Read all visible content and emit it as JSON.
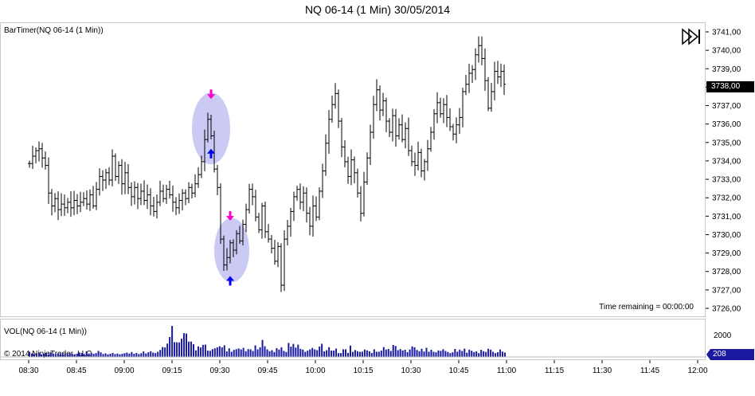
{
  "title": "NQ 06-14 (1 Min)  30/05/2014",
  "price_panel": {
    "label": "BarTimer(NQ 06-14 (1 Min))",
    "time_remaining": "Time remaining = 00:00:00",
    "last_price": "3738,00"
  },
  "volume_panel": {
    "label": "VOL(NQ 06-14 (1 Min))",
    "copyright": "© 2014 NinjaTrader, LLC",
    "last_volume": "208",
    "axis_tick": "2000"
  },
  "colors": {
    "bars": "#000000",
    "volume": "#1a1aa0",
    "ellipse": "#b8b8f0",
    "arrow_magenta": "#ff00cc",
    "arrow_blue": "#0000ee",
    "last_price_box": "#000000",
    "last_volume_box": "#1a1aa0"
  },
  "icons": {
    "playback": "skip-to-end-icon"
  },
  "chart_data": {
    "type": "ohlc",
    "title": "NQ 06-14 (1 Min)  30/05/2014",
    "y_ticks": [
      "3741,00",
      "3740,00",
      "3739,00",
      "3738,00",
      "3737,00",
      "3736,00",
      "3735,00",
      "3734,00",
      "3733,00",
      "3732,00",
      "3731,00",
      "3730,00",
      "3729,00",
      "3728,00",
      "3727,00",
      "3726,00"
    ],
    "y_range": [
      3725.6,
      3741.5
    ],
    "x_ticks": [
      "08:30",
      "08:45",
      "09:00",
      "09:15",
      "09:30",
      "09:45",
      "10:00",
      "10:15",
      "10:30",
      "10:45",
      "11:00",
      "11:15",
      "11:30",
      "11:45",
      "12:00"
    ],
    "x_range_minutes": [
      510,
      720
    ],
    "close_path": [
      [
        510,
        3733.9
      ],
      [
        511,
        3734.3
      ],
      [
        512,
        3734.6
      ],
      [
        513,
        3734.7
      ],
      [
        514,
        3734.2
      ],
      [
        515,
        3733.8
      ],
      [
        516,
        3732.3
      ],
      [
        517,
        3731.6
      ],
      [
        518,
        3732.0
      ],
      [
        519,
        3731.4
      ],
      [
        520,
        3731.7
      ],
      [
        521,
        3731.5
      ],
      [
        522,
        3731.8
      ],
      [
        523,
        3731.5
      ],
      [
        524,
        3731.9
      ],
      [
        525,
        3731.6
      ],
      [
        526,
        3731.8
      ],
      [
        527,
        3732.0
      ],
      [
        528,
        3731.7
      ],
      [
        529,
        3732.2
      ],
      [
        530,
        3731.6
      ],
      [
        531,
        3732.5
      ],
      [
        532,
        3733.2
      ],
      [
        533,
        3733.0
      ],
      [
        534,
        3733.4
      ],
      [
        535,
        3733.0
      ],
      [
        536,
        3734.3
      ],
      [
        537,
        3733.2
      ],
      [
        538,
        3733.8
      ],
      [
        539,
        3732.8
      ],
      [
        540,
        3733.4
      ],
      [
        541,
        3732.6
      ],
      [
        542,
        3732.1
      ],
      [
        543,
        3732.6
      ],
      [
        544,
        3732.0
      ],
      [
        545,
        3732.4
      ],
      [
        546,
        3731.9
      ],
      [
        547,
        3732.2
      ],
      [
        548,
        3731.6
      ],
      [
        549,
        3731.3
      ],
      [
        550,
        3731.8
      ],
      [
        551,
        3732.4
      ],
      [
        552,
        3732.0
      ],
      [
        553,
        3732.5
      ],
      [
        554,
        3732.2
      ],
      [
        555,
        3731.8
      ],
      [
        556,
        3731.5
      ],
      [
        557,
        3731.9
      ],
      [
        558,
        3732.3
      ],
      [
        559,
        3732.0
      ],
      [
        560,
        3732.6
      ],
      [
        561,
        3732.3
      ],
      [
        562,
        3732.8
      ],
      [
        563,
        3733.3
      ],
      [
        564,
        3734.0
      ],
      [
        565,
        3735.2
      ],
      [
        566,
        3736.3
      ],
      [
        567,
        3735.4
      ],
      [
        568,
        3733.6
      ],
      [
        569,
        3732.6
      ],
      [
        570,
        3729.8
      ],
      [
        571,
        3728.4
      ],
      [
        572,
        3728.8
      ],
      [
        573,
        3729.6
      ],
      [
        574,
        3729.2
      ],
      [
        575,
        3730.1
      ],
      [
        576,
        3729.7
      ],
      [
        577,
        3730.6
      ],
      [
        578,
        3731.4
      ],
      [
        579,
        3732.5
      ],
      [
        580,
        3732.1
      ],
      [
        581,
        3731.0
      ],
      [
        582,
        3730.3
      ],
      [
        583,
        3731.6
      ],
      [
        584,
        3730.2
      ],
      [
        585,
        3729.8
      ],
      [
        586,
        3729.3
      ],
      [
        587,
        3728.6
      ],
      [
        588,
        3729.4
      ],
      [
        589,
        3727.3
      ],
      [
        590,
        3729.8
      ],
      [
        591,
        3730.5
      ],
      [
        592,
        3731.3
      ],
      [
        593,
        3732.1
      ],
      [
        594,
        3732.5
      ],
      [
        595,
        3731.8
      ],
      [
        596,
        3732.3
      ],
      [
        597,
        3731.2
      ],
      [
        598,
        3730.5
      ],
      [
        599,
        3731.6
      ],
      [
        600,
        3731.0
      ],
      [
        601,
        3732.4
      ],
      [
        602,
        3733.5
      ],
      [
        603,
        3735.0
      ],
      [
        604,
        3736.3
      ],
      [
        605,
        3737.1
      ],
      [
        606,
        3737.7
      ],
      [
        607,
        3736.2
      ],
      [
        608,
        3734.8
      ],
      [
        609,
        3734.0
      ],
      [
        610,
        3733.2
      ],
      [
        611,
        3734.1
      ],
      [
        612,
        3733.4
      ],
      [
        613,
        3732.3
      ],
      [
        614,
        3731.2
      ],
      [
        615,
        3732.9
      ],
      [
        616,
        3734.2
      ],
      [
        617,
        3735.6
      ],
      [
        618,
        3737.1
      ],
      [
        619,
        3737.9
      ],
      [
        620,
        3736.8
      ],
      [
        621,
        3737.3
      ],
      [
        622,
        3736.2
      ],
      [
        623,
        3735.6
      ],
      [
        624,
        3736.5
      ],
      [
        625,
        3735.4
      ],
      [
        626,
        3736.0
      ],
      [
        627,
        3735.2
      ],
      [
        628,
        3735.8
      ],
      [
        629,
        3734.6
      ],
      [
        630,
        3734.0
      ],
      [
        631,
        3733.8
      ],
      [
        632,
        3734.5
      ],
      [
        633,
        3733.5
      ],
      [
        634,
        3734.0
      ],
      [
        635,
        3734.7
      ],
      [
        636,
        3735.6
      ],
      [
        637,
        3736.6
      ],
      [
        638,
        3737.2
      ],
      [
        639,
        3736.6
      ],
      [
        640,
        3737.1
      ],
      [
        641,
        3736.4
      ],
      [
        642,
        3735.9
      ],
      [
        643,
        3735.5
      ],
      [
        644,
        3736.0
      ],
      [
        645,
        3736.4
      ],
      [
        646,
        3737.8
      ],
      [
        647,
        3738.2
      ],
      [
        648,
        3738.8
      ],
      [
        649,
        3739.0
      ],
      [
        650,
        3739.8
      ],
      [
        651,
        3740.3
      ],
      [
        652,
        3739.6
      ],
      [
        653,
        3738.4
      ],
      [
        654,
        3736.9
      ],
      [
        655,
        3737.8
      ],
      [
        656,
        3738.9
      ],
      [
        657,
        3738.6
      ],
      [
        658,
        3738.9
      ],
      [
        659,
        3738.2
      ]
    ],
    "signals": [
      {
        "time": 567,
        "price": 3737.4,
        "marker": "down-arrow",
        "color": "magenta"
      },
      {
        "time": 567,
        "price": 3734.7,
        "marker": "up-arrow",
        "color": "blue"
      },
      {
        "time": 573,
        "price": 3730.8,
        "marker": "down-arrow",
        "color": "magenta"
      },
      {
        "time": 573,
        "price": 3727.8,
        "marker": "up-arrow",
        "color": "blue"
      }
    ],
    "highlights": [
      {
        "time_from": 562,
        "time_to": 572,
        "price_from": 3734.2,
        "price_to": 3737.4
      },
      {
        "time_from": 569,
        "time_to": 578,
        "price_from": 3727.8,
        "price_to": 3730.6
      }
    ],
    "volume": [
      48,
      33,
      26,
      34,
      40,
      24,
      30,
      38,
      22,
      45,
      30,
      28,
      35,
      25,
      40,
      33,
      27,
      36,
      29,
      26,
      31,
      43,
      37,
      28,
      52,
      33,
      41,
      30,
      36,
      57,
      44,
      28,
      34,
      25,
      30,
      38,
      27,
      32,
      25,
      29,
      35,
      41,
      32,
      47,
      30,
      38,
      27,
      35,
      52,
      33,
      44,
      54,
      41,
      36,
      48,
      66,
      93,
      90,
      126,
      188,
      292,
      139,
      138,
      137,
      172,
      224,
      220,
      144,
      145,
      120,
      62,
      99,
      89,
      114,
      116,
      60,
      58,
      74,
      81,
      90,
      101,
      90,
      110,
      52,
      81,
      49,
      66,
      73,
      80,
      71,
      86,
      54,
      74,
      72,
      56,
      109,
      71,
      90,
      160,
      101,
      72,
      54,
      64,
      46,
      83,
      70,
      91,
      57,
      47,
      132,
      97,
      123,
      88,
      116,
      76,
      69,
      48,
      59,
      71,
      85,
      71,
      64,
      98,
      124,
      53,
      64,
      92,
      60,
      60,
      79,
      36,
      37,
      72,
      72,
      38,
      107,
      48,
      65,
      54,
      48,
      50,
      70,
      62,
      53,
      37,
      72,
      49,
      49,
      60,
      93,
      70,
      75,
      57,
      113,
      103,
      64,
      74,
      61,
      67,
      45,
      70,
      99,
      91,
      66,
      54,
      77,
      51,
      86,
      49,
      68,
      48,
      44,
      61,
      57,
      73,
      56,
      47,
      36,
      44,
      75,
      50,
      69,
      56,
      78,
      40,
      69,
      58,
      46,
      53,
      36,
      67,
      54,
      47,
      77,
      69,
      48,
      36,
      45,
      70,
      50,
      41
    ],
    "volume_max_note": "2000"
  }
}
